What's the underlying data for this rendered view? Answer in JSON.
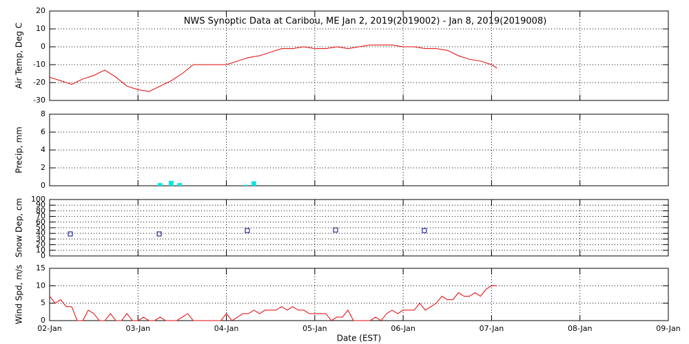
{
  "chart_data": [
    {
      "type": "line",
      "title": "NWS Synoptic Data at Caribou, ME   Jan  2, 2019(2019002) - Jan  8, 2019(2019008)",
      "ylabel": "Air Temp, Deg C",
      "color": "#e00000",
      "grid": true,
      "x": [
        0,
        0.125,
        0.25,
        0.375,
        0.5,
        0.625,
        0.75,
        0.875,
        1,
        1.125,
        1.25,
        1.375,
        1.5,
        1.625,
        1.75,
        1.875,
        2,
        2.125,
        2.25,
        2.375,
        2.5,
        2.625,
        2.75,
        2.875,
        3,
        3.125,
        3.25,
        3.375,
        3.5,
        3.625,
        3.75,
        3.875,
        4,
        4.125,
        4.25,
        4.375,
        4.5,
        4.625,
        4.75,
        4.875,
        5,
        5.0625
      ],
      "values": [
        -17,
        -19,
        -21,
        -18,
        -16,
        -13,
        -17,
        -22,
        -24,
        -25,
        -22,
        -19,
        -15,
        -10,
        -10,
        -10,
        -10,
        -8,
        -6,
        -5,
        -3,
        -1,
        -1,
        0,
        -1,
        -1,
        0,
        -1,
        0,
        1,
        1,
        1,
        0,
        0,
        -1,
        -1,
        -2,
        -5,
        -7,
        -8,
        -10,
        -12
      ],
      "xlim": [
        0,
        7
      ],
      "xticks": [
        0,
        1,
        2,
        3,
        4,
        5,
        6,
        7
      ],
      "ylim": [
        -30,
        20
      ],
      "yticks": [
        -30,
        -20,
        -10,
        0,
        10,
        20
      ]
    },
    {
      "type": "bar",
      "ylabel": "Precip, mm",
      "color": "#00e8e8",
      "grid": true,
      "x": [
        1.25,
        1.375,
        1.47,
        2.22,
        2.31
      ],
      "values": [
        0.3,
        0.55,
        0.3,
        0.1,
        0.5
      ],
      "xlim": [
        0,
        7
      ],
      "xticks": [
        0,
        1,
        2,
        3,
        4,
        5,
        6,
        7
      ],
      "ylim": [
        0,
        8
      ],
      "yticks": [
        0,
        2,
        4,
        6,
        8
      ]
    },
    {
      "type": "scatter",
      "ylabel": "Snow Dep, cm",
      "color": "#000080",
      "grid": true,
      "x": [
        0.234,
        1.24,
        2.237,
        3.235,
        4.24
      ],
      "values": [
        39,
        39,
        45,
        46,
        45
      ],
      "xlim": [
        0,
        7
      ],
      "xticks": [
        0,
        1,
        2,
        3,
        4,
        5,
        6,
        7
      ],
      "ylim": [
        0,
        100
      ],
      "yticks": [
        0,
        10,
        20,
        30,
        40,
        50,
        60,
        70,
        80,
        90,
        100
      ]
    },
    {
      "type": "line",
      "ylabel": "Wind Spd, m/s",
      "xlabel": "Date (EST)",
      "color": "#e00000",
      "grid": true,
      "x": [
        0,
        0.0625,
        0.125,
        0.1875,
        0.25,
        0.3125,
        0.375,
        0.4375,
        0.5,
        0.5625,
        0.625,
        0.6875,
        0.75,
        0.8125,
        0.875,
        0.9375,
        1,
        1.0625,
        1.125,
        1.1875,
        1.25,
        1.3125,
        1.375,
        1.4375,
        1.5,
        1.5625,
        1.625,
        1.6875,
        1.75,
        1.8125,
        1.875,
        1.9375,
        2,
        2.0625,
        2.125,
        2.1875,
        2.25,
        2.3125,
        2.375,
        2.4375,
        2.5,
        2.5625,
        2.625,
        2.6875,
        2.75,
        2.8125,
        2.875,
        2.9375,
        3,
        3.0625,
        3.125,
        3.1875,
        3.25,
        3.3125,
        3.375,
        3.4375,
        3.5,
        3.5625,
        3.625,
        3.6875,
        3.75,
        3.8125,
        3.875,
        3.9375,
        4,
        4.0625,
        4.125,
        4.1875,
        4.25,
        4.3125,
        4.375,
        4.4375,
        4.5,
        4.5625,
        4.625,
        4.6875,
        4.75,
        4.8125,
        4.875,
        4.9375,
        5,
        5.0625
      ],
      "values": [
        7,
        5,
        6,
        4,
        4,
        0,
        0,
        3,
        2,
        0,
        0,
        2,
        0,
        0,
        2,
        0,
        0,
        1,
        0,
        0,
        1,
        0,
        0,
        0,
        1,
        2,
        0,
        0,
        0,
        0,
        0,
        0,
        2,
        0,
        1,
        2,
        2,
        3,
        2,
        3,
        3,
        3,
        4,
        3,
        4,
        3,
        3,
        2,
        2,
        2,
        2,
        0,
        1,
        1,
        3,
        0,
        0,
        0,
        0,
        1,
        0,
        2,
        3,
        2,
        3,
        3,
        3,
        5,
        3,
        4,
        5,
        7,
        6,
        6,
        8,
        7,
        7,
        8,
        7,
        9,
        10,
        10
      ],
      "xlim": [
        0,
        7
      ],
      "xticks": [
        {
          "value": 0,
          "label": "02-Jan"
        },
        {
          "value": 1,
          "label": "03-Jan"
        },
        {
          "value": 2,
          "label": "04-Jan"
        },
        {
          "value": 3,
          "label": "05-Jan"
        },
        {
          "value": 4,
          "label": "06-Jan"
        },
        {
          "value": 5,
          "label": "07-Jan"
        },
        {
          "value": 6,
          "label": "08-Jan"
        },
        {
          "value": 7,
          "label": "09-Jan"
        }
      ],
      "ylim": [
        0,
        15
      ],
      "yticks": [
        0,
        5,
        10,
        15
      ]
    }
  ]
}
